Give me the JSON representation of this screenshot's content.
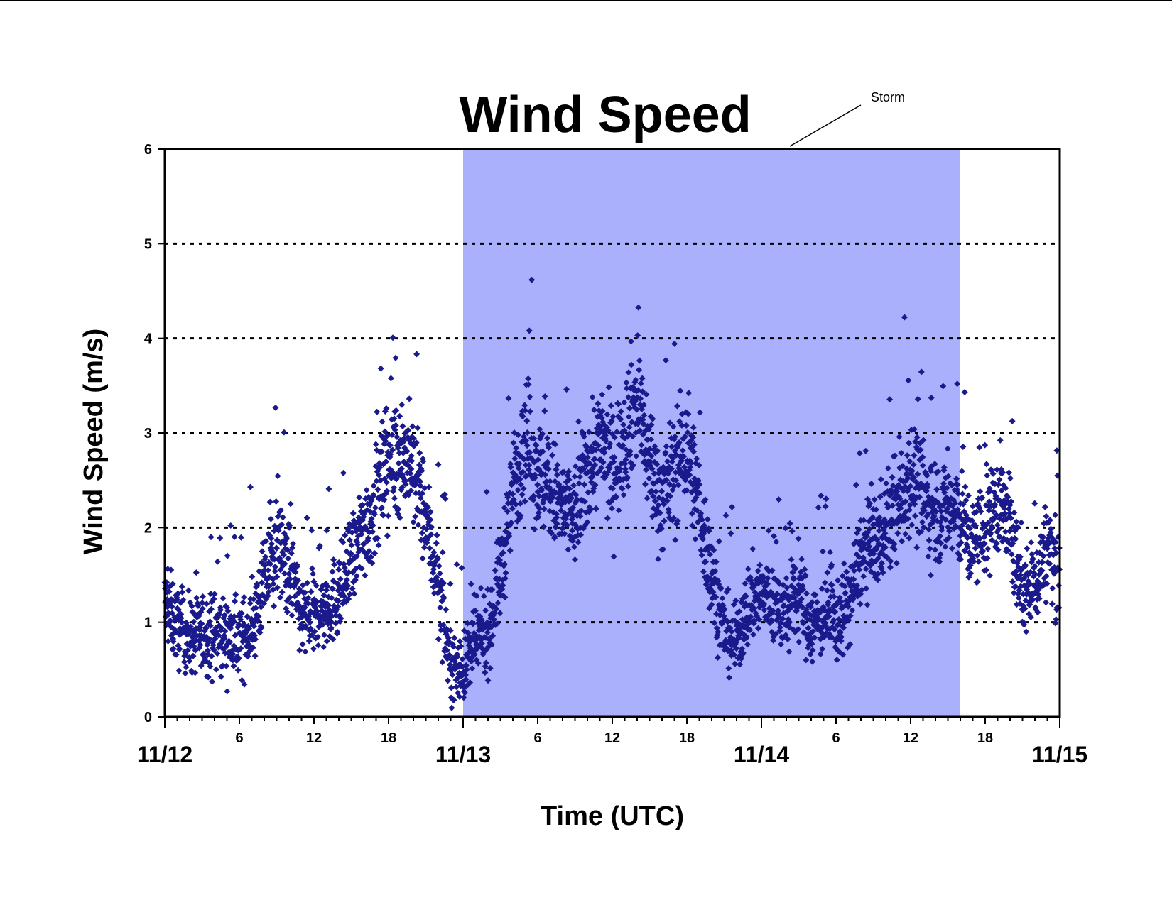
{
  "chart_data": {
    "type": "scatter",
    "title": "Wind Speed",
    "xlabel": "Time (UTC)",
    "ylabel": "Wind Speed (m/s)",
    "x_unit": "hours",
    "xlim": [
      0,
      72
    ],
    "ylim": [
      0,
      6
    ],
    "y_ticks": [
      "0",
      "1",
      "2",
      "3",
      "4",
      "5",
      "6"
    ],
    "x_hour_ticks": [
      {
        "x": 6,
        "label": "6"
      },
      {
        "x": 12,
        "label": "12"
      },
      {
        "x": 18,
        "label": "18"
      },
      {
        "x": 30,
        "label": "6"
      },
      {
        "x": 36,
        "label": "12"
      },
      {
        "x": 42,
        "label": "18"
      },
      {
        "x": 54,
        "label": "6"
      },
      {
        "x": 60,
        "label": "12"
      },
      {
        "x": 66,
        "label": "18"
      }
    ],
    "x_day_ticks": [
      {
        "x": 0,
        "label": "11/12"
      },
      {
        "x": 24,
        "label": "11/13"
      },
      {
        "x": 48,
        "label": "11/14"
      },
      {
        "x": 72,
        "label": "11/15"
      }
    ],
    "gridlines_y": [
      1,
      2,
      3,
      4,
      5
    ],
    "grid_style": "dotted",
    "storm_region": {
      "start": 24,
      "end": 64,
      "label": "Storm"
    },
    "colors": {
      "points": "#1a1a8c",
      "storm": "#aab0fb",
      "grid": "#000000"
    },
    "series": [
      {
        "marker": "diamond",
        "profile": [
          [
            0,
            1.2
          ],
          [
            1,
            0.95
          ],
          [
            2,
            0.85
          ],
          [
            3,
            0.85
          ],
          [
            4,
            0.9
          ],
          [
            5,
            0.85
          ],
          [
            6,
            0.8
          ],
          [
            7,
            0.95
          ],
          [
            8,
            1.4
          ],
          [
            9,
            1.8
          ],
          [
            10,
            1.6
          ],
          [
            11,
            1.05
          ],
          [
            12,
            1.05
          ],
          [
            13,
            1.15
          ],
          [
            14,
            1.3
          ],
          [
            15,
            1.6
          ],
          [
            16,
            2.0
          ],
          [
            17,
            2.25
          ],
          [
            18,
            2.7
          ],
          [
            19,
            2.8
          ],
          [
            20,
            2.6
          ],
          [
            21,
            2.1
          ],
          [
            22,
            1.4
          ],
          [
            23,
            0.55
          ],
          [
            24,
            0.5
          ],
          [
            25,
            0.8
          ],
          [
            26,
            0.9
          ],
          [
            27,
            1.5
          ],
          [
            28,
            2.4
          ],
          [
            29,
            3.0
          ],
          [
            30,
            2.6
          ],
          [
            31,
            2.4
          ],
          [
            32,
            2.2
          ],
          [
            33,
            2.1
          ],
          [
            34,
            2.6
          ],
          [
            35,
            2.9
          ],
          [
            36,
            2.6
          ],
          [
            37,
            3.0
          ],
          [
            38,
            3.4
          ],
          [
            39,
            2.7
          ],
          [
            40,
            2.3
          ],
          [
            41,
            2.6
          ],
          [
            42,
            2.9
          ],
          [
            43,
            2.2
          ],
          [
            44,
            1.5
          ],
          [
            45,
            0.9
          ],
          [
            46,
            0.8
          ],
          [
            47,
            1.2
          ],
          [
            48,
            1.3
          ],
          [
            49,
            1.2
          ],
          [
            50,
            1.1
          ],
          [
            51,
            1.3
          ],
          [
            52,
            0.95
          ],
          [
            53,
            1.1
          ],
          [
            54,
            1.0
          ],
          [
            55,
            1.2
          ],
          [
            56,
            1.7
          ],
          [
            57,
            1.8
          ],
          [
            58,
            2.0
          ],
          [
            59,
            2.2
          ],
          [
            60,
            2.6
          ],
          [
            61,
            2.3
          ],
          [
            62,
            2.2
          ],
          [
            63,
            2.2
          ],
          [
            64,
            2.1
          ],
          [
            65,
            1.8
          ],
          [
            66,
            2.0
          ],
          [
            67,
            2.3
          ],
          [
            68,
            2.0
          ],
          [
            69,
            1.3
          ],
          [
            70,
            1.4
          ],
          [
            71,
            1.8
          ],
          [
            72,
            1.5
          ]
        ],
        "spread": 0.4
      }
    ]
  }
}
